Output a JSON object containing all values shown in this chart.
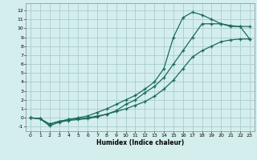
{
  "title": "",
  "xlabel": "Humidex (Indice chaleur)",
  "bg_color": "#d4eeee",
  "grid_color": "#aacccc",
  "line_color": "#1a6b5a",
  "xlim": [
    -0.5,
    23.5
  ],
  "ylim": [
    -1.5,
    12.8
  ],
  "xticks": [
    0,
    1,
    2,
    3,
    4,
    5,
    6,
    7,
    8,
    9,
    10,
    11,
    12,
    13,
    14,
    15,
    16,
    17,
    18,
    19,
    20,
    21,
    22,
    23
  ],
  "yticks": [
    -1,
    0,
    1,
    2,
    3,
    4,
    5,
    6,
    7,
    8,
    9,
    10,
    11,
    12
  ],
  "line1_x": [
    0,
    1,
    2,
    3,
    4,
    5,
    6,
    7,
    8,
    9,
    10,
    11,
    12,
    13,
    14,
    15,
    16,
    17,
    18,
    19,
    20,
    21,
    22,
    23
  ],
  "line1_y": [
    0.0,
    -0.1,
    -0.7,
    -0.4,
    -0.2,
    -0.1,
    0.0,
    0.2,
    0.4,
    0.7,
    1.0,
    1.4,
    1.8,
    2.4,
    3.2,
    4.2,
    5.5,
    6.8,
    7.5,
    8.0,
    8.5,
    8.7,
    8.8,
    8.8
  ],
  "line2_x": [
    0,
    1,
    2,
    3,
    4,
    5,
    6,
    7,
    8,
    9,
    10,
    11,
    12,
    13,
    14,
    15,
    16,
    17,
    18,
    19,
    20,
    21,
    22,
    23
  ],
  "line2_y": [
    0.0,
    -0.1,
    -0.7,
    -0.4,
    -0.2,
    0.0,
    0.2,
    0.6,
    1.0,
    1.5,
    2.0,
    2.5,
    3.2,
    4.0,
    5.5,
    9.0,
    11.2,
    11.8,
    11.5,
    11.0,
    10.5,
    10.2,
    10.2,
    10.2
  ],
  "line3_x": [
    0,
    1,
    2,
    3,
    4,
    5,
    6,
    7,
    8,
    9,
    10,
    11,
    12,
    13,
    14,
    15,
    16,
    17,
    18,
    19,
    20,
    21,
    22,
    23
  ],
  "line3_y": [
    0.0,
    -0.1,
    -0.9,
    -0.5,
    -0.3,
    -0.2,
    -0.1,
    0.1,
    0.4,
    0.8,
    1.5,
    2.0,
    2.8,
    3.5,
    4.5,
    6.0,
    7.5,
    9.0,
    10.5,
    10.5,
    10.5,
    10.3,
    10.2,
    8.8
  ]
}
